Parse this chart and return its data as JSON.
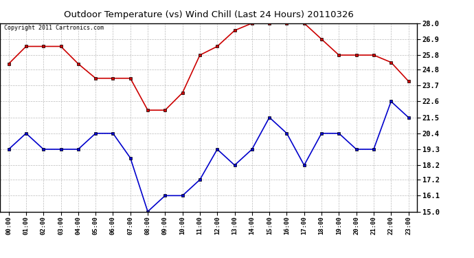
{
  "title": "Outdoor Temperature (vs) Wind Chill (Last 24 Hours) 20110326",
  "copyright": "Copyright 2011 Cartronics.com",
  "x_labels": [
    "00:00",
    "01:00",
    "02:00",
    "03:00",
    "04:00",
    "05:00",
    "06:00",
    "07:00",
    "08:00",
    "09:00",
    "10:00",
    "11:00",
    "12:00",
    "13:00",
    "14:00",
    "15:00",
    "16:00",
    "17:00",
    "18:00",
    "19:00",
    "20:00",
    "21:00",
    "22:00",
    "23:00"
  ],
  "red_data": [
    25.2,
    26.4,
    26.4,
    26.4,
    25.2,
    24.2,
    24.2,
    24.2,
    22.0,
    22.0,
    23.2,
    25.8,
    26.4,
    27.5,
    28.0,
    28.0,
    28.0,
    28.0,
    26.9,
    25.8,
    25.8,
    25.8,
    25.3,
    24.0
  ],
  "blue_data": [
    19.3,
    20.4,
    19.3,
    19.3,
    19.3,
    20.4,
    20.4,
    18.7,
    15.0,
    16.1,
    16.1,
    17.2,
    19.3,
    18.2,
    19.3,
    21.5,
    20.4,
    18.2,
    20.4,
    20.4,
    19.3,
    19.3,
    22.6,
    21.5
  ],
  "ylim": [
    15.0,
    28.0
  ],
  "yticks": [
    15.0,
    16.1,
    17.2,
    18.2,
    19.3,
    20.4,
    21.5,
    22.6,
    23.7,
    24.8,
    25.8,
    26.9,
    28.0
  ],
  "red_color": "#cc0000",
  "blue_color": "#0000cc",
  "grid_color": "#bbbbbb",
  "bg_color": "#ffffff",
  "marker": "s",
  "marker_size": 3.0,
  "line_width": 1.2
}
